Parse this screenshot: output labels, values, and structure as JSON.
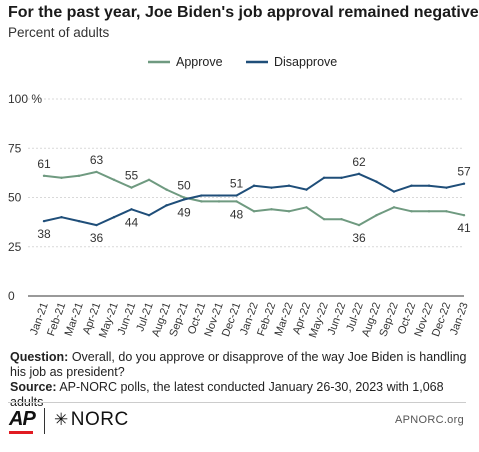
{
  "header": {
    "title": "For the past year, Joe Biden's job approval remained negative",
    "subtitle": "Percent of adults"
  },
  "chart_data": {
    "type": "line",
    "x": [
      "Jan-21",
      "Feb-21",
      "Mar-21",
      "Apr-21",
      "May-21",
      "Jun-21",
      "Jul-21",
      "Aug-21",
      "Sep-21",
      "Oct-21",
      "Nov-21",
      "Dec-21",
      "Jan-22",
      "Feb-22",
      "Mar-22",
      "Apr-22",
      "May-22",
      "Jun-22",
      "Jul-22",
      "Aug-22",
      "Sep-22",
      "Oct-22",
      "Nov-22",
      "Dec-22",
      "Jan-23"
    ],
    "series": [
      {
        "name": "Approve",
        "color": "#6f9a80",
        "values": [
          61,
          60,
          61,
          63,
          59,
          55,
          59,
          54,
          50,
          48,
          48,
          48,
          43,
          44,
          43,
          45,
          39,
          39,
          36,
          41,
          45,
          43,
          43,
          43,
          41
        ]
      },
      {
        "name": "Disapprove",
        "color": "#1f4e79",
        "values": [
          38,
          40,
          38,
          36,
          40,
          44,
          41,
          46,
          49,
          51,
          51,
          51,
          56,
          55,
          56,
          54,
          60,
          60,
          62,
          58,
          53,
          56,
          56,
          55,
          57
        ]
      }
    ],
    "data_labels": [
      {
        "series": 0,
        "index": 0,
        "text": "61"
      },
      {
        "series": 0,
        "index": 3,
        "text": "63"
      },
      {
        "series": 0,
        "index": 5,
        "text": "55"
      },
      {
        "series": 0,
        "index": 8,
        "text": "50"
      },
      {
        "series": 0,
        "index": 11,
        "text": "48"
      },
      {
        "series": 0,
        "index": 18,
        "text": "36"
      },
      {
        "series": 0,
        "index": 24,
        "text": "41"
      },
      {
        "series": 1,
        "index": 0,
        "text": "38"
      },
      {
        "series": 1,
        "index": 3,
        "text": "36"
      },
      {
        "series": 1,
        "index": 5,
        "text": "44"
      },
      {
        "series": 1,
        "index": 8,
        "text": "49"
      },
      {
        "series": 1,
        "index": 11,
        "text": "51"
      },
      {
        "series": 1,
        "index": 18,
        "text": "62"
      },
      {
        "series": 1,
        "index": 24,
        "text": "57"
      }
    ],
    "y_ticks": [
      "100 %",
      "75",
      "50",
      "25",
      "0"
    ],
    "ylim": [
      0,
      100
    ],
    "grid": true,
    "legend": "top-center"
  },
  "note": {
    "question_label": "Question:",
    "question_text": "Overall, do you approve or disapprove of the way Joe Biden is handling his job as president?",
    "source_label": "Source:",
    "source_text": "AP-NORC polls, the latest conducted January 26-30, 2023 with 1,068 adults"
  },
  "footer": {
    "ap_logo": "AP",
    "norc_logo": "NORC",
    "website": "APNORC.org"
  }
}
